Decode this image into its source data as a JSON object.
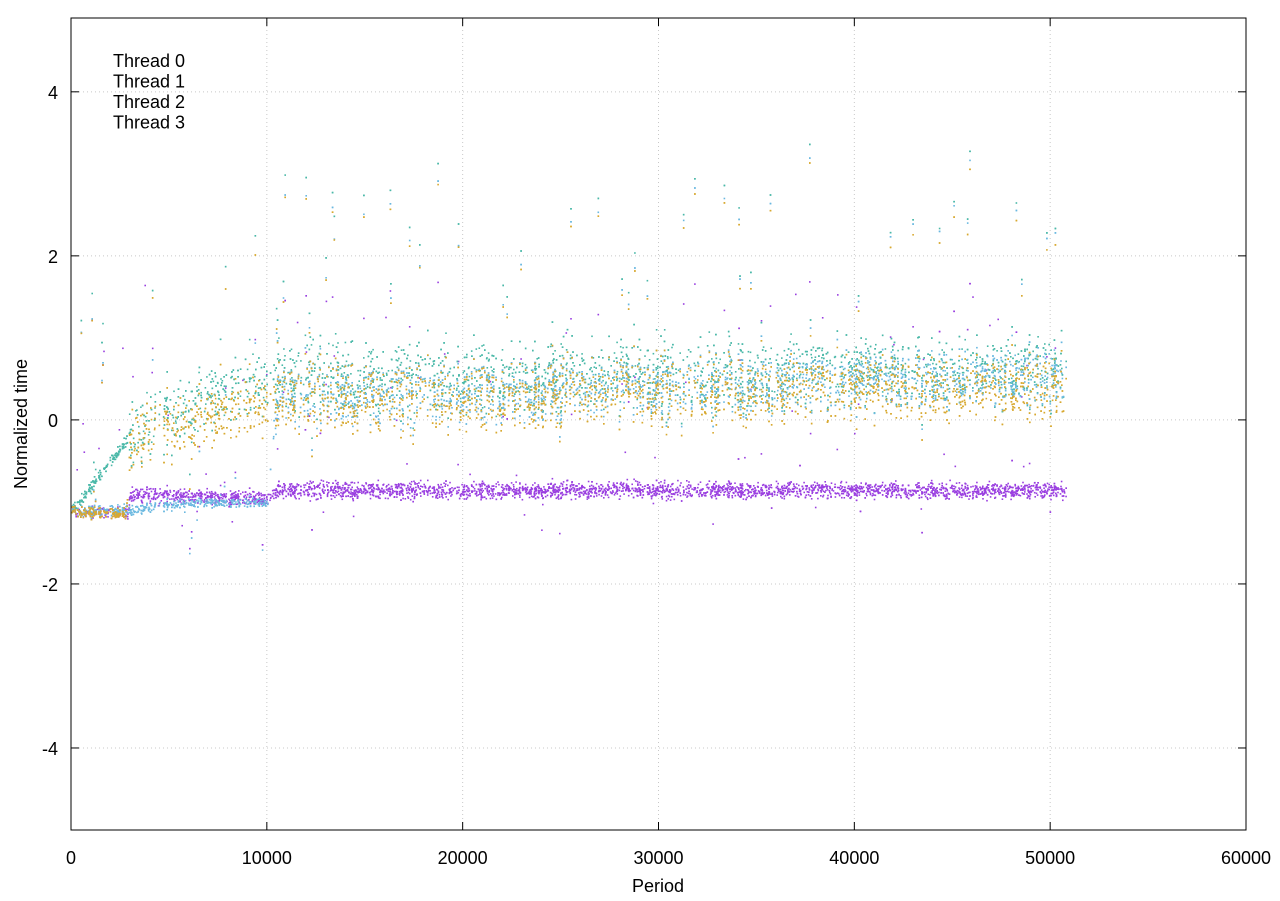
{
  "chart_data": {
    "type": "scatter",
    "title": "",
    "xlabel": "Period",
    "ylabel": "Normalized time",
    "xlim": [
      0,
      60000
    ],
    "ylim": [
      -5,
      4.9
    ],
    "xticks": [
      0,
      10000,
      20000,
      30000,
      40000,
      50000,
      60000
    ],
    "xtick_labels": [
      "0",
      "10000",
      "20000",
      "30000",
      "40000",
      "50000",
      "60000"
    ],
    "yticks": [
      -4,
      -2,
      0,
      2,
      4
    ],
    "ytick_labels": [
      "-4",
      "-2",
      "0",
      "2",
      "4"
    ],
    "grid": true,
    "legend": "top-left",
    "series": [
      {
        "name": "Thread 0",
        "color": "#9a3fe0",
        "description_points": [
          [
            0,
            -1.1
          ],
          [
            2900,
            -1.15
          ],
          [
            3000,
            -0.9
          ],
          [
            10000,
            -0.95
          ],
          [
            10500,
            -0.85
          ],
          [
            20000,
            -0.85
          ],
          [
            30000,
            -0.85
          ],
          [
            40000,
            -0.85
          ],
          [
            50800,
            -0.85
          ]
        ]
      },
      {
        "name": "Thread 1",
        "color": "#4ab8a8",
        "description_points": [
          [
            0,
            -1.1
          ],
          [
            3000,
            -0.2
          ],
          [
            7000,
            0.3
          ],
          [
            10000,
            0.5
          ],
          [
            20000,
            0.55
          ],
          [
            30000,
            0.55
          ],
          [
            40000,
            0.6
          ],
          [
            50800,
            0.6
          ]
        ]
      },
      {
        "name": "Thread 2",
        "color": "#6ab8e0",
        "description_points": [
          [
            0,
            -1.1
          ],
          [
            3000,
            -1.1
          ],
          [
            6000,
            -1.0
          ],
          [
            10000,
            -1.0
          ],
          [
            10500,
            0.3
          ],
          [
            20000,
            0.35
          ],
          [
            30000,
            0.4
          ],
          [
            40000,
            0.5
          ],
          [
            50800,
            0.55
          ]
        ]
      },
      {
        "name": "Thread 3",
        "color": "#d8a930",
        "description_points": [
          [
            0,
            -1.1
          ],
          [
            2800,
            -1.15
          ],
          [
            3000,
            -0.25
          ],
          [
            7000,
            0.05
          ],
          [
            10000,
            0.25
          ],
          [
            20000,
            0.3
          ],
          [
            30000,
            0.35
          ],
          [
            40000,
            0.4
          ],
          [
            50800,
            0.4
          ]
        ]
      }
    ]
  }
}
